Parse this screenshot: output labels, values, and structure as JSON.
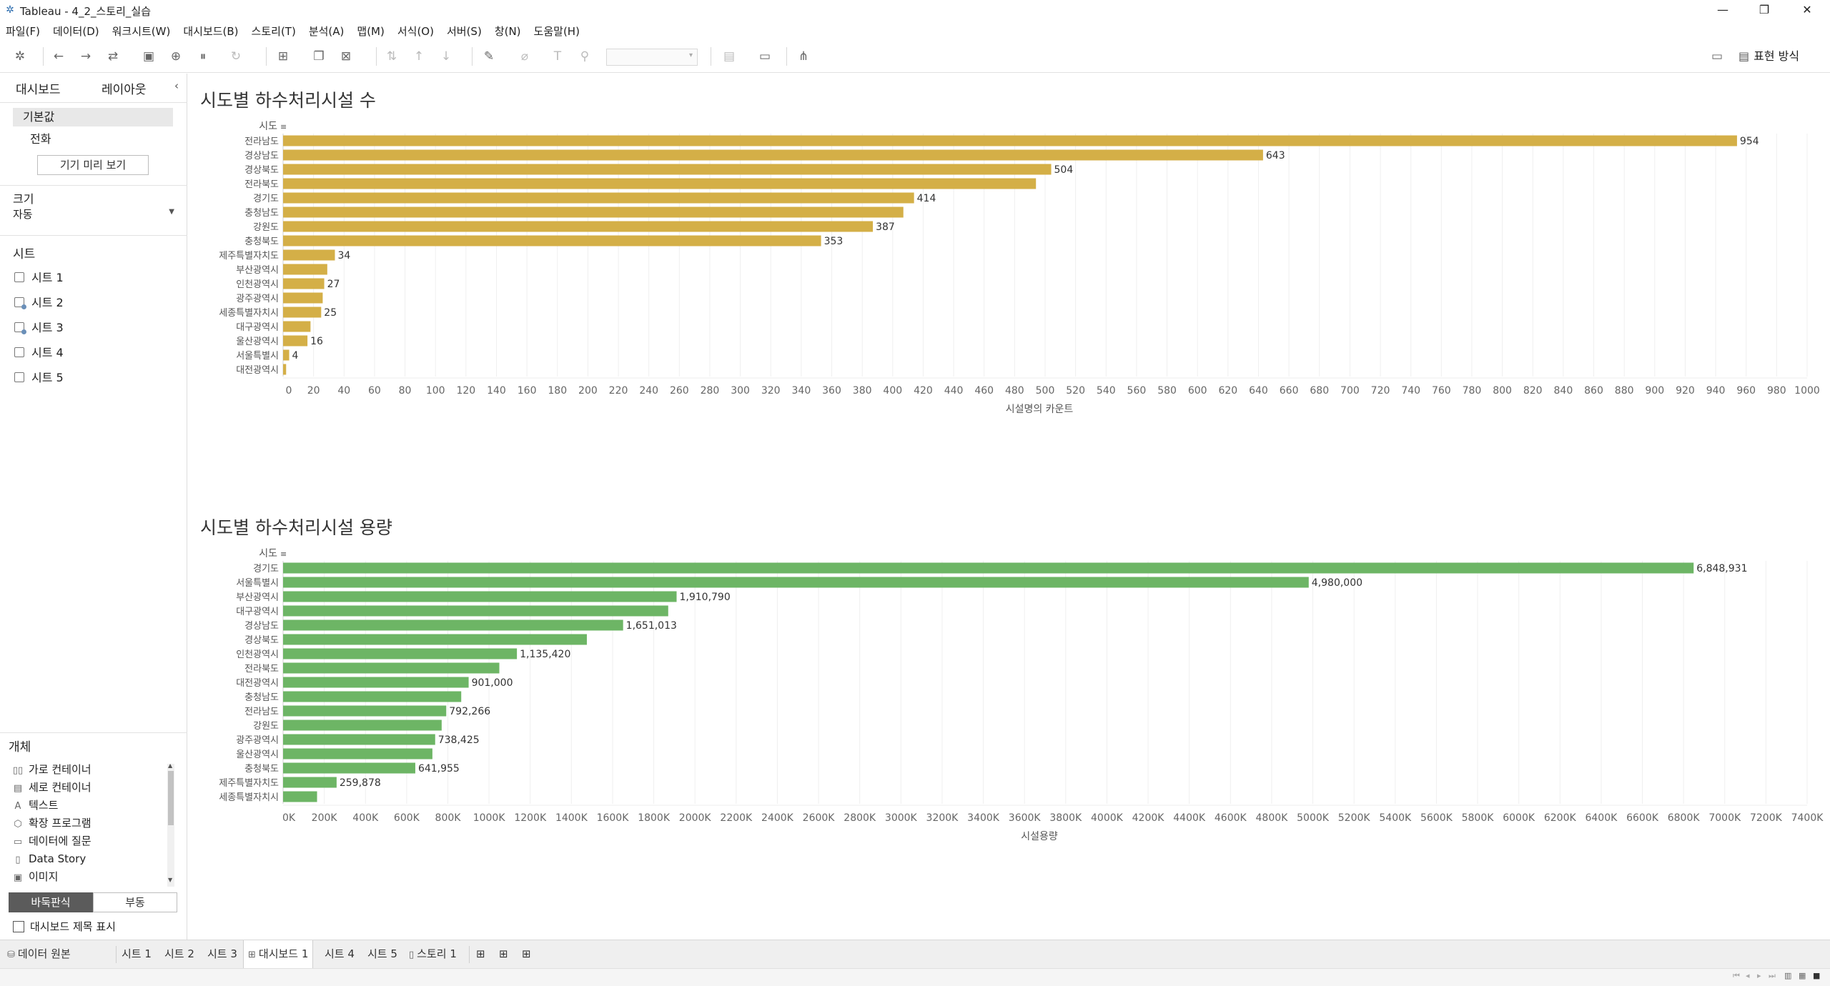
{
  "window": {
    "title": "Tableau - 4_2_스토리_실습",
    "minimize_glyph": "—",
    "maximize_glyph": "❐",
    "close_glyph": "✕"
  },
  "menu": [
    "파일(F)",
    "데이터(D)",
    "워크시트(W)",
    "대시보드(B)",
    "스토리(T)",
    "분석(A)",
    "맵(M)",
    "서식(O)",
    "서버(S)",
    "창(N)",
    "도움말(H)"
  ],
  "toolbar": {
    "show_me_label": "표현 방식"
  },
  "left_pane": {
    "tabs": [
      "대시보드",
      "레이아웃"
    ],
    "devices": {
      "default": "기본값",
      "phone": "전화",
      "preview_button": "기기 미리 보기"
    },
    "size": {
      "heading": "크기",
      "value": "자동"
    },
    "sheets_heading": "시트",
    "sheets": [
      "시트 1",
      "시트 2",
      "시트 3",
      "시트 4",
      "시트 5"
    ],
    "objects_heading": "개체",
    "objects": [
      {
        "label": "가로 컨테이너",
        "icon": "horizontal-container-icon"
      },
      {
        "label": "세로 컨테이너",
        "icon": "vertical-container-icon"
      },
      {
        "label": "텍스트",
        "icon": "text-icon"
      },
      {
        "label": "확장 프로그램",
        "icon": "extension-icon"
      },
      {
        "label": "데이터에 질문",
        "icon": "ask-data-icon"
      },
      {
        "label": "Data Story",
        "icon": "data-story-icon"
      },
      {
        "label": "이미지",
        "icon": "image-icon"
      }
    ],
    "tiled_label": "바둑판식",
    "floating_label": "부동",
    "show_title_label": "대시보드 제목 표시"
  },
  "chart_data": [
    {
      "type": "bar",
      "orientation": "horizontal",
      "title": "시도별 하수처리시설 수",
      "row_header": "시도",
      "xlabel": "시설명의 카운트",
      "color": "#D4AF47",
      "xlim": [
        0,
        1000
      ],
      "x_tick_step": 20,
      "categories": [
        "전라남도",
        "경상남도",
        "경상북도",
        "전라북도",
        "경기도",
        "충청남도",
        "강원도",
        "충청북도",
        "제주특별자치도",
        "부산광역시",
        "인천광역시",
        "광주광역시",
        "세종특별자치시",
        "대구광역시",
        "울산광역시",
        "서울특별시",
        "대전광역시"
      ],
      "values": [
        954,
        643,
        504,
        494,
        414,
        407,
        387,
        353,
        34,
        29,
        27,
        26,
        25,
        18,
        16,
        4,
        2
      ],
      "labeled": [
        true,
        true,
        true,
        false,
        true,
        false,
        true,
        true,
        true,
        false,
        true,
        false,
        true,
        false,
        true,
        true,
        false
      ]
    },
    {
      "type": "bar",
      "orientation": "horizontal",
      "title": "시도별 하수처리시설 용량",
      "row_header": "시도",
      "xlabel": "시설용량",
      "color": "#6DB565",
      "xlim": [
        0,
        7400000
      ],
      "x_tick_step": 200000,
      "categories": [
        "경기도",
        "서울특별시",
        "부산광역시",
        "대구광역시",
        "경상남도",
        "경상북도",
        "인천광역시",
        "전라북도",
        "대전광역시",
        "충청남도",
        "전라남도",
        "강원도",
        "광주광역시",
        "울산광역시",
        "충청북도",
        "제주특별자치도",
        "세종특별자치시"
      ],
      "values": [
        6848931,
        4980000,
        1910790,
        1870000,
        1651013,
        1475000,
        1135420,
        1050000,
        901000,
        865000,
        792266,
        770000,
        738425,
        725000,
        641955,
        259878,
        165000
      ],
      "labeled": [
        true,
        true,
        true,
        false,
        true,
        false,
        true,
        false,
        true,
        false,
        true,
        false,
        true,
        false,
        true,
        true,
        false
      ]
    }
  ],
  "bottom_tabs": {
    "data_source": "데이터 원본",
    "tabs": [
      "시트 1",
      "시트 2",
      "시트 3",
      "대시보드 1",
      "시트 4",
      "시트 5",
      "스토리 1"
    ],
    "active": "대시보드 1"
  }
}
